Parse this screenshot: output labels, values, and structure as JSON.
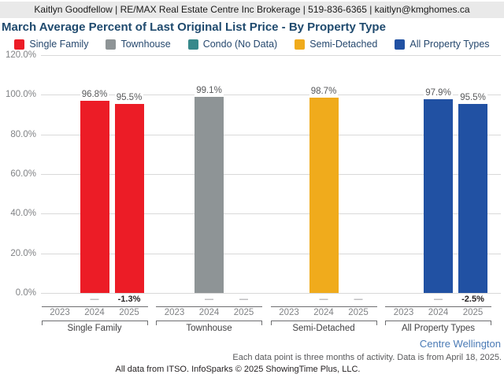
{
  "header": {
    "contact_line": "Kaitlyn Goodfellow | RE/MAX Real Estate Centre Inc Brokerage | 519-836-6365 | kaitlyn@kmghomes.ca"
  },
  "title": "March Average Percent of Last Original List Price - By Property Type",
  "legend": [
    {
      "label": "Single Family",
      "color": "#ec1c26"
    },
    {
      "label": "Townhouse",
      "color": "#8e9496"
    },
    {
      "label": "Condo (No Data)",
      "color": "#37898b"
    },
    {
      "label": "Semi-Detached",
      "color": "#f0ab1c"
    },
    {
      "label": "All Property Types",
      "color": "#2151a3"
    }
  ],
  "chart_data": {
    "type": "bar",
    "title": "March Average Percent of Last Original List Price - By Property Type",
    "xlabel": "",
    "ylabel": "",
    "ylim": [
      0,
      120
    ],
    "ytick_step": 20,
    "ytick_labels": [
      "0.0%",
      "20.0%",
      "40.0%",
      "60.0%",
      "80.0%",
      "100.0%",
      "120.0%"
    ],
    "grid": true,
    "years": [
      "2023",
      "2024",
      "2025"
    ],
    "groups": [
      {
        "label": "Single Family",
        "color": "#ec1c26",
        "values": [
          null,
          96.8,
          95.5
        ],
        "value_labels": [
          "",
          "96.8%",
          "95.5%"
        ],
        "changes": [
          "",
          "—",
          "-1.3%"
        ]
      },
      {
        "label": "Townhouse",
        "color": "#8e9496",
        "values": [
          null,
          99.1,
          null
        ],
        "value_labels": [
          "",
          "99.1%",
          ""
        ],
        "changes": [
          "",
          "—",
          "—"
        ]
      },
      {
        "label": "Semi-Detached",
        "color": "#f0ab1c",
        "values": [
          null,
          98.7,
          null
        ],
        "value_labels": [
          "",
          "98.7%",
          ""
        ],
        "changes": [
          "",
          "—",
          "—"
        ]
      },
      {
        "label": "All Property Types",
        "color": "#2151a3",
        "values": [
          null,
          97.9,
          95.5
        ],
        "value_labels": [
          "",
          "97.9%",
          "95.5%"
        ],
        "changes": [
          "",
          "—",
          "-2.5%"
        ]
      }
    ]
  },
  "footer": {
    "region": "Centre Wellington",
    "note": "Each data point is three months of activity. Data is from April 18, 2025.",
    "attribution": "All data from ITSO. InfoSparks © 2025 ShowingTime Plus, LLC."
  }
}
